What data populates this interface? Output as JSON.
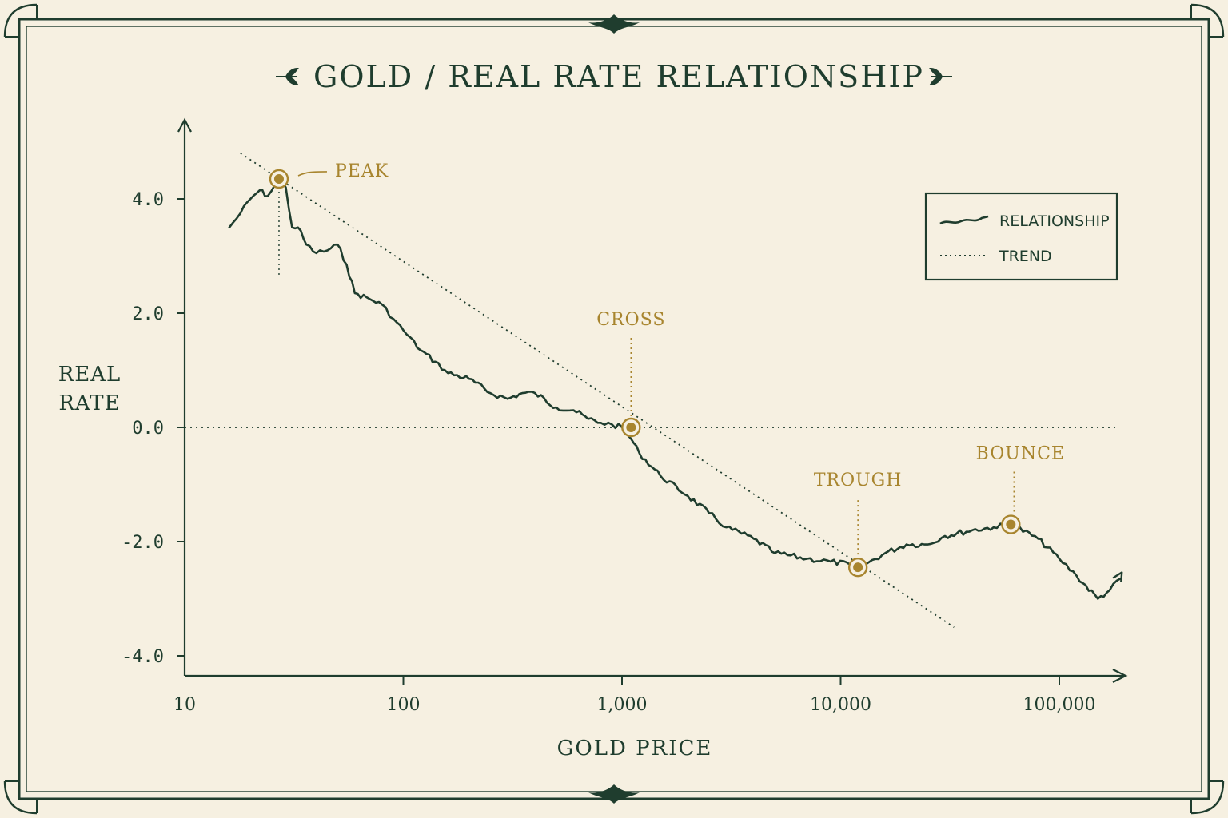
{
  "colors": {
    "background": "#f6f0e1",
    "ink": "#1f3d2e",
    "accent": "#a8852e"
  },
  "chart_data": {
    "type": "line",
    "title": "GOLD / REAL RATE RELATIONSHIP",
    "xlabel": "GOLD PRICE",
    "ylabel": [
      "REAL",
      "RATE"
    ],
    "x_scale": "log",
    "xlim": [
      10,
      200000
    ],
    "ylim": [
      -4.4,
      5.2
    ],
    "x_ticks": [
      {
        "value": 10,
        "label": "10"
      },
      {
        "value": 100,
        "label": "100"
      },
      {
        "value": 1000,
        "label": "1,000"
      },
      {
        "value": 10000,
        "label": "10,000"
      },
      {
        "value": 100000,
        "label": "100,000"
      }
    ],
    "y_ticks": [
      {
        "value": 4,
        "label": "4.0"
      },
      {
        "value": 2,
        "label": "2.0"
      },
      {
        "value": 0,
        "label": "0.0"
      },
      {
        "value": -2,
        "label": "-2.0"
      },
      {
        "value": -4,
        "label": "-4.0"
      }
    ],
    "grid": false,
    "legend": {
      "position": "top-right",
      "entries": [
        {
          "name": "RELATIONSHIP",
          "style": "solid"
        },
        {
          "name": "TREND",
          "style": "dotted"
        }
      ]
    },
    "series": [
      {
        "name": "RELATIONSHIP",
        "style": "solid",
        "x": [
          16,
          18,
          20,
          22,
          24,
          27,
          29,
          31,
          33,
          36,
          40,
          45,
          50,
          55,
          60,
          70,
          80,
          90,
          100,
          120,
          140,
          160,
          200,
          250,
          300,
          350,
          400,
          500,
          600,
          700,
          800,
          900,
          1000,
          1100,
          1200,
          1500,
          2000,
          2500,
          3000,
          4000,
          5000,
          7000,
          9000,
          11000,
          12000,
          13000,
          16000,
          20000,
          25000,
          30000,
          40000,
          50000,
          60000,
          80000,
          100000,
          120000,
          150000,
          170000,
          190000
        ],
        "y": [
          3.5,
          3.75,
          4.0,
          4.15,
          4.05,
          4.35,
          4.2,
          3.5,
          3.5,
          3.2,
          3.05,
          3.1,
          3.2,
          2.85,
          2.35,
          2.25,
          2.15,
          1.9,
          1.7,
          1.35,
          1.15,
          0.95,
          0.85,
          0.6,
          0.5,
          0.6,
          0.6,
          0.35,
          0.3,
          0.15,
          0.08,
          0.05,
          0.0,
          -0.2,
          -0.45,
          -0.85,
          -1.2,
          -1.5,
          -1.75,
          -1.95,
          -2.2,
          -2.3,
          -2.35,
          -2.4,
          -2.45,
          -2.4,
          -2.2,
          -2.05,
          -2.05,
          -1.9,
          -1.8,
          -1.75,
          -1.7,
          -1.95,
          -2.3,
          -2.6,
          -3.0,
          -2.85,
          -2.65
        ]
      },
      {
        "name": "TREND",
        "style": "dotted",
        "x": [
          18,
          33000
        ],
        "y": [
          4.8,
          -3.5
        ]
      }
    ],
    "reference_lines": [
      {
        "axis": "y",
        "value": 0,
        "style": "dotted"
      }
    ],
    "annotations": [
      {
        "label": "PEAK",
        "x": 27,
        "y": 4.35
      },
      {
        "label": "CROSS",
        "x": 1100,
        "y": 0.0
      },
      {
        "label": "TROUGH",
        "x": 12000,
        "y": -2.45
      },
      {
        "label": "BOUNCE",
        "x": 60000,
        "y": -1.7
      }
    ]
  }
}
